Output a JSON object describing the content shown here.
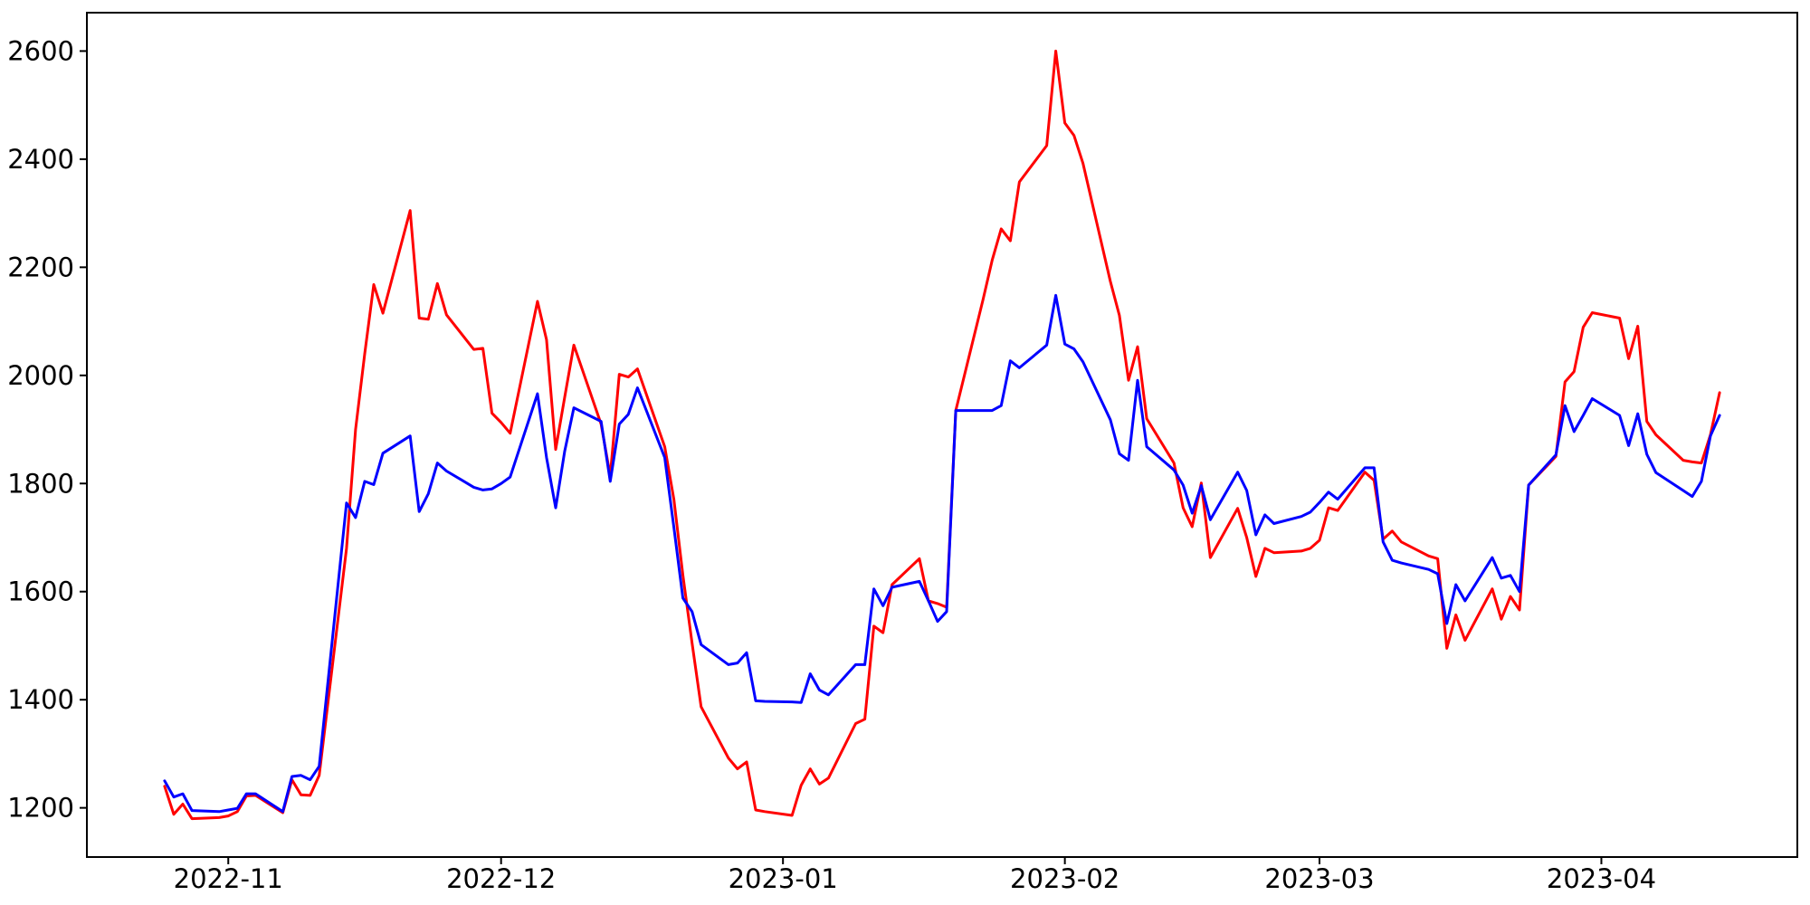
{
  "figure": {
    "background_color": "#ffffff",
    "frame_color": "#000000",
    "tick_color": "#000000",
    "label_color": "#000000"
  },
  "chart_data": {
    "type": "line",
    "title": "",
    "xlabel": "",
    "ylabel": "",
    "grid": false,
    "legend": "none",
    "x_tick_labels": [
      "2022-11",
      "2022-12",
      "2023-01",
      "2023-02",
      "2023-03",
      "2023-04"
    ],
    "x_ticks": [
      {
        "date": "2022-11-01",
        "label": "2022-11"
      },
      {
        "date": "2022-12-01",
        "label": "2022-12"
      },
      {
        "date": "2023-01-01",
        "label": "2023-01"
      },
      {
        "date": "2023-02-01",
        "label": "2023-02"
      },
      {
        "date": "2023-03-01",
        "label": "2023-03"
      },
      {
        "date": "2023-04-01",
        "label": "2023-04"
      }
    ],
    "y_ticks": [
      1200,
      1400,
      1600,
      1800,
      2000,
      2200,
      2400,
      2600
    ],
    "ylim_data": [
      1180,
      2600
    ],
    "x": [
      "2022-10-25",
      "2022-10-26",
      "2022-10-27",
      "2022-10-28",
      "2022-10-31",
      "2022-11-01",
      "2022-11-02",
      "2022-11-03",
      "2022-11-04",
      "2022-11-07",
      "2022-11-08",
      "2022-11-09",
      "2022-11-10",
      "2022-11-11",
      "2022-11-14",
      "2022-11-15",
      "2022-11-16",
      "2022-11-17",
      "2022-11-18",
      "2022-11-21",
      "2022-11-22",
      "2022-11-23",
      "2022-11-24",
      "2022-11-25",
      "2022-11-28",
      "2022-11-29",
      "2022-11-30",
      "2022-12-01",
      "2022-12-02",
      "2022-12-05",
      "2022-12-06",
      "2022-12-07",
      "2022-12-08",
      "2022-12-09",
      "2022-12-12",
      "2022-12-13",
      "2022-12-14",
      "2022-12-15",
      "2022-12-16",
      "2022-12-19",
      "2022-12-20",
      "2022-12-21",
      "2022-12-22",
      "2022-12-23",
      "2022-12-26",
      "2022-12-27",
      "2022-12-28",
      "2022-12-29",
      "2022-12-30",
      "2023-01-02",
      "2023-01-03",
      "2023-01-04",
      "2023-01-05",
      "2023-01-06",
      "2023-01-09",
      "2023-01-10",
      "2023-01-11",
      "2023-01-12",
      "2023-01-13",
      "2023-01-16",
      "2023-01-17",
      "2023-01-18",
      "2023-01-19",
      "2023-01-20",
      "2023-01-23",
      "2023-01-24",
      "2023-01-25",
      "2023-01-26",
      "2023-01-27",
      "2023-01-30",
      "2023-01-31",
      "2023-02-01",
      "2023-02-02",
      "2023-02-03",
      "2023-02-06",
      "2023-02-07",
      "2023-02-08",
      "2023-02-09",
      "2023-02-10",
      "2023-02-13",
      "2023-02-14",
      "2023-02-15",
      "2023-02-16",
      "2023-02-17",
      "2023-02-20",
      "2023-02-21",
      "2023-02-22",
      "2023-02-23",
      "2023-02-24",
      "2023-02-27",
      "2023-02-28",
      "2023-03-01",
      "2023-03-02",
      "2023-03-03",
      "2023-03-06",
      "2023-03-07",
      "2023-03-08",
      "2023-03-09",
      "2023-03-10",
      "2023-03-13",
      "2023-03-14",
      "2023-03-15",
      "2023-03-16",
      "2023-03-17",
      "2023-03-20",
      "2023-03-21",
      "2023-03-22",
      "2023-03-23",
      "2023-03-24",
      "2023-03-27",
      "2023-03-28",
      "2023-03-29",
      "2023-03-30",
      "2023-03-31",
      "2023-04-03",
      "2023-04-04",
      "2023-04-05",
      "2023-04-06",
      "2023-04-07",
      "2023-04-10",
      "2023-04-11",
      "2023-04-12",
      "2023-04-13",
      "2023-04-14"
    ],
    "series": [
      {
        "name": "red-series",
        "color": "#ff0000",
        "values": [
          1240,
          1188,
          1207,
          1180,
          1182,
          1185,
          1193,
          1222,
          1223,
          1191,
          1252,
          1224,
          1223,
          1260,
          1680,
          1900,
          2040,
          2168,
          2115,
          2305,
          2106,
          2104,
          2170,
          2112,
          2048,
          2050,
          1930,
          1913,
          1893,
          2137,
          2066,
          1863,
          1960,
          2056,
          1910,
          1814,
          2002,
          1997,
          2012,
          1868,
          1771,
          1630,
          1505,
          1387,
          1292,
          1272,
          1285,
          1196,
          1193,
          1186,
          1242,
          1272,
          1244,
          1255,
          1356,
          1364,
          1536,
          1524,
          1613,
          1661,
          1583,
          1578,
          1571,
          1935,
          2140,
          2213,
          2271,
          2249,
          2358,
          2425,
          2600,
          2467,
          2444,
          2392,
          2174,
          2111,
          1991,
          2053,
          1920,
          1838,
          1755,
          1720,
          1801,
          1663,
          1754,
          1700,
          1628,
          1680,
          1672,
          1675,
          1680,
          1695,
          1755,
          1750,
          1821,
          1806,
          1697,
          1712,
          1692,
          1666,
          1661,
          1495,
          1557,
          1510,
          1605,
          1549,
          1591,
          1566,
          1797,
          1850,
          1988,
          2007,
          2089,
          2116,
          2106,
          2031,
          2091,
          1915,
          1890,
          1843,
          1840,
          1838,
          1890,
          1968
        ]
      },
      {
        "name": "blue-series",
        "color": "#0000ff",
        "values": [
          1250,
          1220,
          1226,
          1195,
          1193,
          1196,
          1199,
          1226,
          1226,
          1193,
          1258,
          1260,
          1252,
          1277,
          1764,
          1737,
          1804,
          1798,
          1856,
          1888,
          1748,
          1781,
          1838,
          1823,
          1793,
          1788,
          1790,
          1800,
          1812,
          1966,
          1848,
          1755,
          1860,
          1940,
          1915,
          1804,
          1910,
          1928,
          1977,
          1848,
          1719,
          1588,
          1563,
          1502,
          1465,
          1468,
          1487,
          1398,
          1397,
          1396,
          1395,
          1448,
          1418,
          1409,
          1465,
          1465,
          1605,
          1574,
          1608,
          1619,
          1583,
          1545,
          1563,
          1935,
          1935,
          1935,
          1944,
          2027,
          2014,
          2056,
          2148,
          2058,
          2049,
          2025,
          1918,
          1855,
          1843,
          1991,
          1868,
          1825,
          1797,
          1745,
          1796,
          1733,
          1821,
          1787,
          1705,
          1742,
          1726,
          1739,
          1747,
          1765,
          1784,
          1771,
          1829,
          1829,
          1692,
          1658,
          1653,
          1641,
          1633,
          1541,
          1613,
          1583,
          1663,
          1625,
          1630,
          1600,
          1797,
          1853,
          1944,
          1896,
          1926,
          1957,
          1926,
          1870,
          1929,
          1854,
          1820,
          1787,
          1776,
          1804,
          1888,
          1926
        ]
      }
    ]
  }
}
